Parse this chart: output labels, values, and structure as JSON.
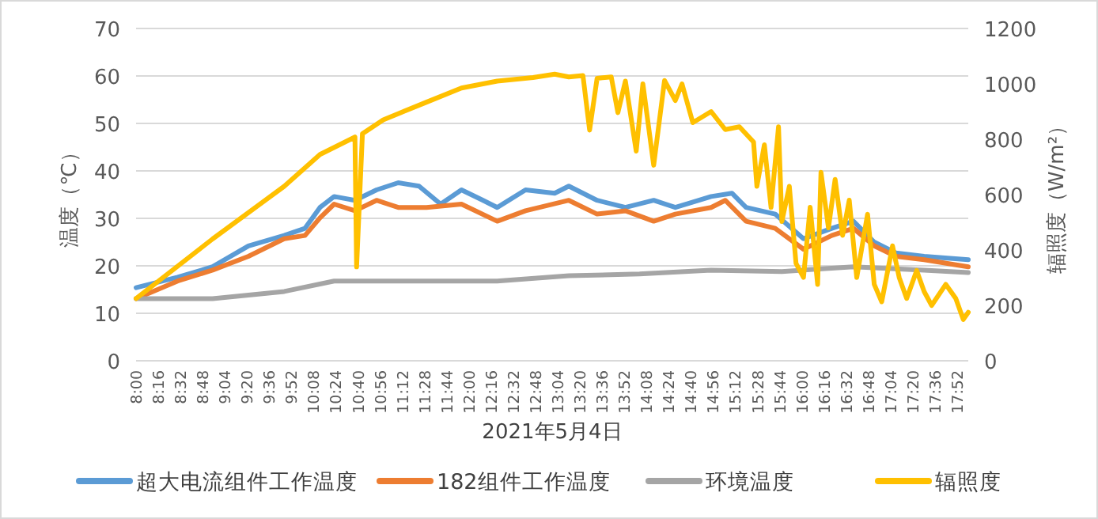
{
  "chart_data": {
    "type": "line",
    "xlabel": "2021年5月4日",
    "ylabel": "温度（℃）",
    "y2label": "辐照度（W/m²）",
    "xlim": [
      8,
      18
    ],
    "xticks": [
      {
        "value": 8,
        "label": "8:00"
      },
      {
        "value": 8.267,
        "label": "8:16"
      },
      {
        "value": 8.533,
        "label": "8:32"
      },
      {
        "value": 8.8,
        "label": "8:48"
      },
      {
        "value": 9.067,
        "label": "9:04"
      },
      {
        "value": 9.333,
        "label": "9:20"
      },
      {
        "value": 9.6,
        "label": "9:36"
      },
      {
        "value": 9.867,
        "label": "9:52"
      },
      {
        "value": 10.133,
        "label": "10:08"
      },
      {
        "value": 10.4,
        "label": "10:24"
      },
      {
        "value": 10.667,
        "label": "10:40"
      },
      {
        "value": 10.933,
        "label": "10:56"
      },
      {
        "value": 11.2,
        "label": "11:12"
      },
      {
        "value": 11.467,
        "label": "11:28"
      },
      {
        "value": 11.733,
        "label": "11:44"
      },
      {
        "value": 12,
        "label": "12:00"
      },
      {
        "value": 12.267,
        "label": "12:16"
      },
      {
        "value": 12.533,
        "label": "12:32"
      },
      {
        "value": 12.8,
        "label": "12:48"
      },
      {
        "value": 13.067,
        "label": "13:04"
      },
      {
        "value": 13.333,
        "label": "13:20"
      },
      {
        "value": 13.6,
        "label": "13:36"
      },
      {
        "value": 13.867,
        "label": "13:52"
      },
      {
        "value": 14.133,
        "label": "14:08"
      },
      {
        "value": 14.4,
        "label": "14:24"
      },
      {
        "value": 14.667,
        "label": "14:40"
      },
      {
        "value": 14.933,
        "label": "14:56"
      },
      {
        "value": 15.2,
        "label": "15:12"
      },
      {
        "value": 15.467,
        "label": "15:28"
      },
      {
        "value": 15.733,
        "label": "15:44"
      },
      {
        "value": 16,
        "label": "16:00"
      },
      {
        "value": 16.267,
        "label": "16:16"
      },
      {
        "value": 16.533,
        "label": "16:32"
      },
      {
        "value": 16.8,
        "label": "16:48"
      },
      {
        "value": 17.067,
        "label": "17:04"
      },
      {
        "value": 17.333,
        "label": "17:20"
      },
      {
        "value": 17.6,
        "label": "17:36"
      },
      {
        "value": 17.867,
        "label": "17:52"
      }
    ],
    "ylim": [
      0,
      70
    ],
    "yticks": [
      0,
      10,
      20,
      30,
      40,
      50,
      60,
      70
    ],
    "y2lim": [
      0,
      1200
    ],
    "y2ticks": [
      0,
      200,
      400,
      600,
      800,
      1000,
      1200
    ],
    "grid": "y",
    "legend": "bottom",
    "series": [
      {
        "name": "超大电流组件工作温度",
        "color": "#5b9bd5",
        "x": [
          8.0,
          8.5,
          8.92,
          9.35,
          9.78,
          10.03,
          10.21,
          10.38,
          10.63,
          10.89,
          11.15,
          11.4,
          11.66,
          11.91,
          12.17,
          12.34,
          12.68,
          13.03,
          13.2,
          13.54,
          13.88,
          14.22,
          14.48,
          14.91,
          15.16,
          15.33,
          15.68,
          16.02,
          16.36,
          16.62,
          16.87,
          17.13,
          17.47,
          18.0
        ],
        "values": [
          15.4,
          17.6,
          19.8,
          24.2,
          26.4,
          27.9,
          32.3,
          34.6,
          33.8,
          36,
          37.5,
          36.8,
          33,
          36,
          33.8,
          32.3,
          36,
          35.3,
          36.8,
          33.8,
          32.3,
          33.8,
          32.3,
          34.6,
          35.3,
          32.3,
          30.9,
          25.7,
          27.9,
          29.4,
          25,
          22.7,
          22,
          21.3
        ]
      },
      {
        "name": "182组件工作温度",
        "color": "#ed7d31",
        "x": [
          8.0,
          8.5,
          8.92,
          9.35,
          9.78,
          10.03,
          10.21,
          10.38,
          10.63,
          10.89,
          11.15,
          11.49,
          11.91,
          12.34,
          12.68,
          13.2,
          13.54,
          13.88,
          14.22,
          14.48,
          14.91,
          15.08,
          15.33,
          15.68,
          16.02,
          16.36,
          16.62,
          16.87,
          17.13,
          17.47,
          18.0
        ],
        "values": [
          13.1,
          16.8,
          19.1,
          22,
          25.7,
          26.4,
          30.1,
          33,
          31.6,
          33.8,
          32.3,
          32.3,
          33,
          29.4,
          31.6,
          33.8,
          30.9,
          31.6,
          29.4,
          30.9,
          32.3,
          33.8,
          29.4,
          27.9,
          23.5,
          26.4,
          27.9,
          24.2,
          22,
          21.3,
          19.8
        ]
      },
      {
        "name": "环境温度",
        "color": "#a5a5a5",
        "x": [
          8.0,
          8.92,
          9.78,
          10.38,
          11.49,
          12.34,
          13.2,
          14.05,
          14.91,
          15.76,
          16.62,
          17.47,
          18.0
        ],
        "values": [
          13.1,
          13.1,
          14.6,
          16.8,
          16.8,
          16.8,
          17.9,
          18.3,
          19.1,
          18.8,
          19.8,
          19.1,
          18.6
        ]
      },
      {
        "name": "辐照度",
        "color": "#ffc000",
        "axis": "y2",
        "x": [
          8.0,
          8.92,
          9.78,
          10.21,
          10.63,
          10.65,
          10.72,
          10.97,
          11.49,
          11.91,
          12.34,
          12.77,
          13.03,
          13.2,
          13.37,
          13.45,
          13.54,
          13.71,
          13.79,
          13.88,
          14.01,
          14.09,
          14.22,
          14.35,
          14.48,
          14.56,
          14.69,
          14.91,
          15.08,
          15.25,
          15.42,
          15.46,
          15.55,
          15.63,
          15.72,
          15.76,
          15.85,
          15.93,
          16.02,
          16.1,
          16.19,
          16.23,
          16.32,
          16.4,
          16.49,
          16.57,
          16.66,
          16.79,
          16.87,
          16.96,
          17.09,
          17.17,
          17.26,
          17.38,
          17.47,
          17.56,
          17.73,
          17.85,
          17.94,
          18.0
        ],
        "values": [
          225,
          440,
          630,
          745,
          808,
          339,
          820,
          870,
          934,
          985,
          1010,
          1023,
          1035,
          1025,
          1030,
          833,
          1020,
          1025,
          896,
          1010,
          757,
          1000,
          706,
          1012,
          940,
          1000,
          860,
          900,
          835,
          845,
          790,
          630,
          780,
          554,
          845,
          503,
          630,
          352,
          301,
          554,
          276,
          681,
          480,
          655,
          453,
          580,
          301,
          529,
          276,
          213,
          415,
          301,
          225,
          326,
          250,
          200,
          276,
          225,
          149,
          175
        ]
      }
    ]
  }
}
